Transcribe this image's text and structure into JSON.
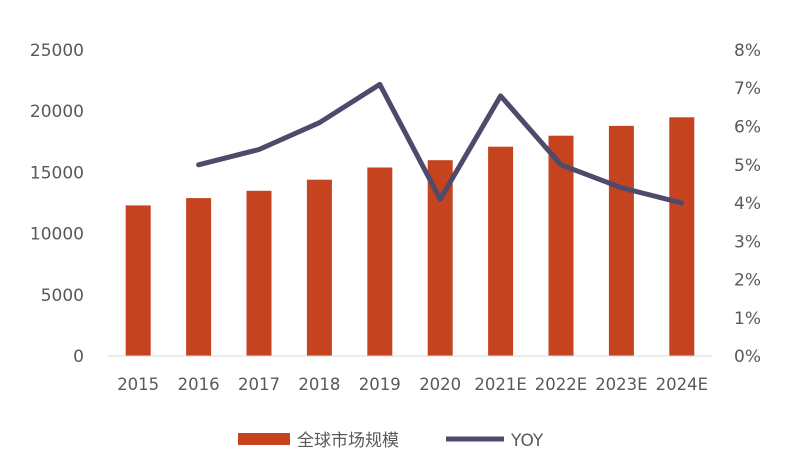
{
  "chart_data": {
    "type": "bar",
    "categories": [
      "2015",
      "2016",
      "2017",
      "2018",
      "2019",
      "2020",
      "2021E",
      "2022E",
      "2023E",
      "2024E"
    ],
    "series": [
      {
        "name": "全球市场规模",
        "type": "bar",
        "axis": "left",
        "values": [
          12300,
          12900,
          13500,
          14400,
          15400,
          16000,
          17100,
          18000,
          18800,
          19500
        ]
      },
      {
        "name": "YOY",
        "type": "line",
        "axis": "right",
        "values": [
          null,
          0.05,
          0.054,
          0.061,
          0.071,
          0.041,
          0.068,
          0.05,
          0.044,
          0.04
        ]
      }
    ],
    "y_left": {
      "ylim": [
        0,
        25000
      ],
      "ticks": [
        0,
        5000,
        10000,
        15000,
        20000,
        25000
      ],
      "tick_labels": [
        "0",
        "5000",
        "10000",
        "15000",
        "20000",
        "25000"
      ]
    },
    "y_right": {
      "ylim": [
        0,
        0.08
      ],
      "ticks": [
        0,
        0.01,
        0.02,
        0.03,
        0.04,
        0.05,
        0.06,
        0.07,
        0.08
      ],
      "tick_labels": [
        "0%",
        "1%",
        "2%",
        "3%",
        "4%",
        "5%",
        "6%",
        "7%",
        "8%"
      ]
    },
    "title": "",
    "xlabel": "",
    "ylabel": "",
    "grid": false,
    "legend": {
      "position": "bottom",
      "entries": [
        "全球市场规模",
        "YOY"
      ]
    },
    "colors": {
      "bar": "#C5441F",
      "line": "#4D4A6B",
      "axis": "#D9D9D9",
      "text": "#595959"
    }
  }
}
